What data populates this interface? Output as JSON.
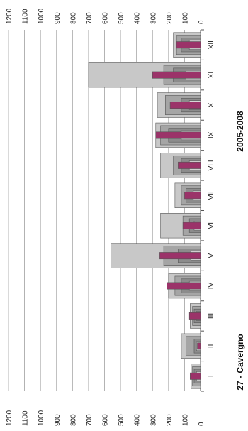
{
  "chart_data": {
    "type": "bar",
    "title": "27 - Cavergno",
    "subtitle": "2005-2008",
    "xlabel": "",
    "ylabel": "",
    "orientation": "rotated-90-clockwise",
    "categories": [
      "I",
      "II",
      "III",
      "IV",
      "V",
      "VI",
      "VII",
      "VIII",
      "IX",
      "X",
      "XI",
      "XII"
    ],
    "yticks": [
      0,
      100,
      200,
      300,
      400,
      500,
      600,
      700,
      800,
      900,
      1000,
      1100,
      1200
    ],
    "ylim": [
      0,
      1200
    ],
    "grid": true,
    "series": [
      {
        "values": [
          60,
          120,
          65,
          200,
          560,
          250,
          160,
          250,
          280,
          270,
          700,
          170
        ],
        "color": "#c8c8c8"
      },
      {
        "values": [
          50,
          90,
          50,
          160,
          230,
          110,
          120,
          170,
          250,
          220,
          230,
          150
        ],
        "color": "#a5a5a5"
      },
      {
        "values": [
          40,
          40,
          40,
          120,
          140,
          70,
          90,
          120,
          200,
          120,
          170,
          120
        ],
        "color": "#8c8c8c"
      },
      {
        "values": [
          25,
          25,
          25,
          70,
          60,
          40,
          45,
          70,
          120,
          70,
          90,
          70
        ],
        "color": "#d8d8d8"
      },
      {
        "values": [
          65,
          20,
          70,
          210,
          255,
          110,
          100,
          140,
          280,
          190,
          300,
          150
        ],
        "color": "#9b3369"
      }
    ]
  }
}
